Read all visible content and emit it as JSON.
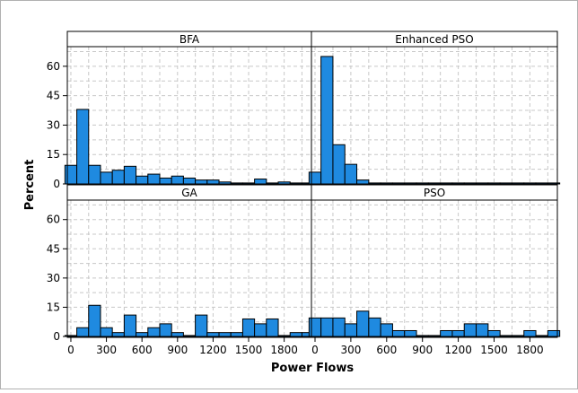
{
  "chart_data": {
    "type": "bar",
    "layout": "2x2 facet grid",
    "xlabel": "Power Flows",
    "ylabel": "Percent",
    "xlim": [
      -30,
      2030
    ],
    "ylim": [
      0,
      70
    ],
    "x_ticks": [
      0,
      300,
      600,
      900,
      1200,
      1500,
      1800
    ],
    "y_ticks": [
      0,
      15,
      30,
      45,
      60
    ],
    "bin_width": 100,
    "bin_starts": [
      -50,
      50,
      150,
      250,
      350,
      450,
      550,
      650,
      750,
      850,
      950,
      1050,
      1150,
      1250,
      1350,
      1450,
      1550,
      1650,
      1750,
      1850,
      1950
    ],
    "grid": true,
    "bar_color": "#1f8ae0",
    "bar_edge_color": "#000000",
    "grid_color": "#c8c8c8",
    "panels": [
      {
        "title": "BFA",
        "row": 0,
        "col": 0,
        "values": [
          9.5,
          38,
          9.5,
          6,
          7,
          9,
          4,
          5,
          3,
          4,
          3,
          2,
          2,
          1,
          0.5,
          0.5,
          2.5,
          0.5,
          1,
          0.5,
          0.5
        ]
      },
      {
        "title": "Enhanced PSO",
        "row": 0,
        "col": 1,
        "values": [
          6,
          65,
          20,
          10,
          2,
          0.5,
          0.5,
          0.5,
          0.5,
          0.5,
          0.5,
          0.5,
          0.5,
          0.5,
          0.5,
          0.5,
          0.5,
          0.5,
          0.5,
          0.5,
          0.5
        ]
      },
      {
        "title": "GA",
        "row": 1,
        "col": 0,
        "values": [
          0.5,
          4.5,
          16,
          4.5,
          2,
          11,
          2,
          4.5,
          6.5,
          2,
          0.5,
          11,
          2,
          2,
          2,
          9,
          6.5,
          9,
          0.5,
          2,
          2
        ]
      },
      {
        "title": "PSO",
        "row": 1,
        "col": 1,
        "values": [
          9.5,
          9.5,
          9.5,
          6.5,
          13,
          9.5,
          6.5,
          3,
          3,
          0.5,
          0.5,
          3,
          3,
          6.5,
          6.5,
          3,
          0.5,
          0.5,
          3,
          0.5,
          3
        ]
      }
    ]
  }
}
